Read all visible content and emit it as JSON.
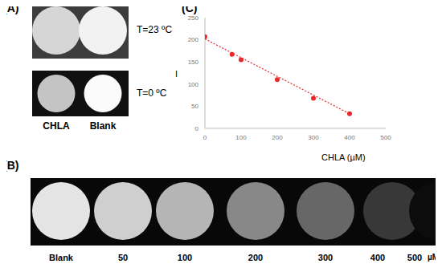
{
  "panel_a": {
    "label": "(A)",
    "rows": [
      {
        "text": "T=23 ºC",
        "background": "#3c3c3c",
        "spots": [
          {
            "color": "#d6d6d6"
          },
          {
            "color": "#f2f2f2"
          }
        ]
      },
      {
        "text": "T=0 ºC",
        "background": "#101010",
        "spots": [
          {
            "color": "#c4c4c4"
          },
          {
            "color": "#fbfbfb"
          }
        ]
      }
    ],
    "columns": [
      "CHLA",
      "Blank"
    ]
  },
  "panel_b": {
    "label": "(B)",
    "unit": "µM",
    "background": "#080808",
    "spots": [
      {
        "label": "Blank",
        "color": "#e4e4e4"
      },
      {
        "label": "50",
        "color": "#cfcfcf"
      },
      {
        "label": "100",
        "color": "#b5b5b5"
      },
      {
        "label": "200",
        "color": "#888888"
      },
      {
        "label": "300",
        "color": "#676767"
      },
      {
        "label": "400",
        "color": "#383838"
      },
      {
        "label": "500",
        "color": "#0c0c0c"
      }
    ]
  },
  "chart_data": {
    "type": "scatter",
    "title": "(C)",
    "x_label": "CHLA (µM)",
    "y_label": "I",
    "xlim": [
      0,
      500
    ],
    "xticks": [
      0,
      100,
      200,
      300,
      400,
      500
    ],
    "ylim": [
      0,
      250
    ],
    "yticks": [
      0,
      50,
      100,
      150,
      200,
      250
    ],
    "grid": false,
    "series": [
      {
        "type": "scatter",
        "color": "#e8282b",
        "marker": "circle",
        "x": [
          0,
          75,
          100,
          200,
          300,
          400
        ],
        "values": [
          207,
          167,
          155,
          110,
          68,
          33
        ]
      },
      {
        "type": "line",
        "color": "#e8282b",
        "line_style": "dotted",
        "x": [
          0,
          400
        ],
        "values": [
          202,
          33
        ]
      }
    ]
  }
}
